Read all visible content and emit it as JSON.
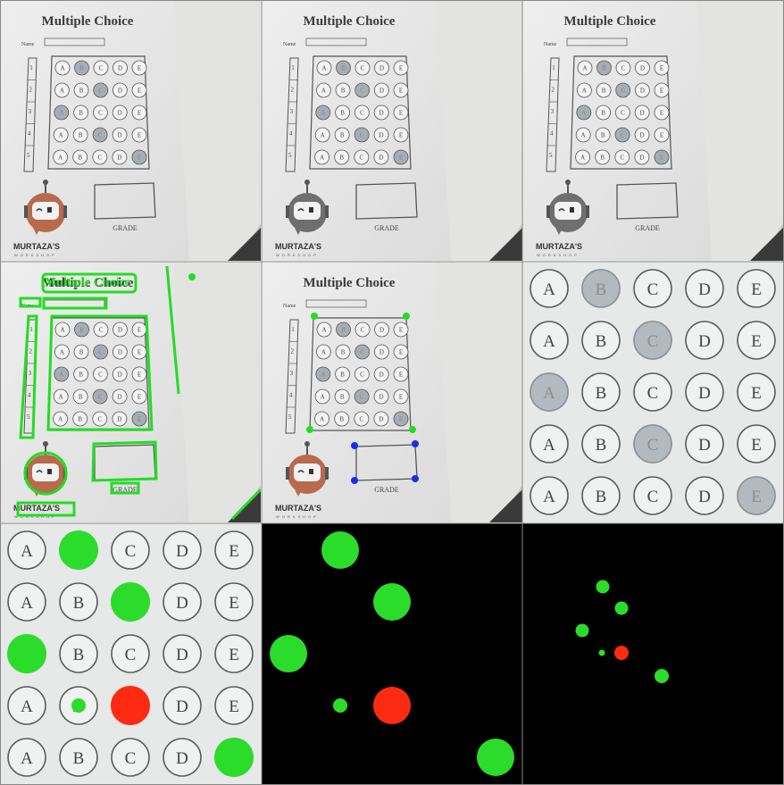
{
  "sheet": {
    "title": "Multiple Choice",
    "name_label": "Name",
    "grade_label": "GRADE",
    "brand_line1": "MURTAZA'S",
    "brand_line2": "WORKSHOP",
    "choices": [
      "A",
      "B",
      "C",
      "D",
      "E"
    ],
    "question_numbers": [
      "1",
      "2",
      "3",
      "4",
      "5"
    ]
  },
  "answers": {
    "marked": [
      1,
      2,
      0,
      2,
      4
    ],
    "correct": [
      1,
      2,
      0,
      1,
      4
    ],
    "result_colors": {
      "correct": "#2bdc2b",
      "wrong": "#ff2a12"
    }
  },
  "colors": {
    "paper": "#e9eaea",
    "wall": "#d8d8d6",
    "contour": "#22dd22",
    "corner_blue": "#1a2ee6",
    "robot_orange": "#b86a4c",
    "robot_gray": "#6f6f6f",
    "background_black": "#000000"
  }
}
